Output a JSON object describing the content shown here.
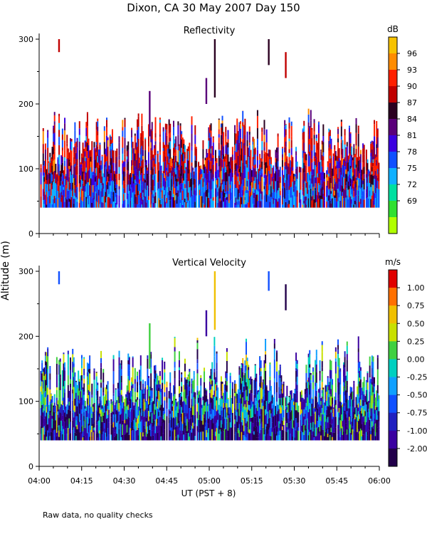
{
  "figure": {
    "title": "Dixon, CA 30 May 2007  Day 150",
    "ylabel": "Altitude (m)",
    "xlabel": "UT  (PST + 8)",
    "footnote": "Raw data, no quality checks"
  },
  "chart_data": [
    {
      "type": "heatmap",
      "title": "Reflectivity",
      "xlabel": "UT  (PST + 8)",
      "ylabel": "Altitude (m)",
      "xlim_hours": [
        4.0,
        6.0
      ],
      "ylim": [
        0,
        300
      ],
      "x_ticks": [
        "04:00",
        "04:15",
        "04:30",
        "04:45",
        "05:00",
        "05:15",
        "05:30",
        "05:45",
        "06:00"
      ],
      "y_ticks": [
        0,
        100,
        200,
        300
      ],
      "data_range_m": [
        40,
        300
      ],
      "colorbar": {
        "unit": "dB",
        "labels": [
          "96",
          "93",
          "90",
          "87",
          "84",
          "81",
          "78",
          "75",
          "72",
          "69"
        ],
        "colors_top_to_bottom": [
          "#f7c200",
          "#ff8c00",
          "#ff2000",
          "#c00000",
          "#2a0020",
          "#5a007a",
          "#3a00e0",
          "#1050ff",
          "#10b0ff",
          "#00e0a0",
          "#30e030",
          "#b0ff00"
        ]
      },
      "palette_weights": {
        "#c00000": 0.12,
        "#ff2000": 0.1,
        "#5a007a": 0.22,
        "#2a0020": 0.12,
        "#3a00e0": 0.16,
        "#1050ff": 0.14,
        "#10b0ff": 0.1,
        "#ff8c00": 0.04
      }
    },
    {
      "type": "heatmap",
      "title": "Vertical Velocity",
      "xlabel": "UT  (PST + 8)",
      "ylabel": "Altitude (m)",
      "xlim_hours": [
        4.0,
        6.0
      ],
      "ylim": [
        0,
        300
      ],
      "x_ticks": [
        "04:00",
        "04:15",
        "04:30",
        "04:45",
        "05:00",
        "05:15",
        "05:30",
        "05:45",
        "06:00"
      ],
      "y_ticks": [
        0,
        100,
        200,
        300
      ],
      "data_range_m": [
        40,
        300
      ],
      "colorbar": {
        "unit": "m/s",
        "labels": [
          "1.00",
          "0.75",
          "0.50",
          "0.25",
          "0.00",
          "-0.25",
          "-0.50",
          "-0.75",
          "-1.00",
          "-2.00"
        ],
        "colors_top_to_bottom": [
          "#e00000",
          "#ff7000",
          "#f0c000",
          "#c8e000",
          "#40d040",
          "#00d0c0",
          "#10a0ff",
          "#1050ff",
          "#2020c0",
          "#3a00a0",
          "#22004a"
        ]
      },
      "palette_weights": {
        "#22004a": 0.18,
        "#3a00a0": 0.14,
        "#2020c0": 0.12,
        "#1050ff": 0.14,
        "#10a0ff": 0.12,
        "#00d0c0": 0.1,
        "#40d040": 0.1,
        "#c8e000": 0.06,
        "#f0c000": 0.04
      }
    }
  ],
  "isolated_echoes": [
    {
      "panel": 0,
      "time_h": 4.117,
      "alt": [
        280,
        300
      ],
      "color": "#c00000"
    },
    {
      "panel": 0,
      "time_h": 4.983,
      "alt": [
        200,
        240
      ],
      "color": "#5a007a"
    },
    {
      "panel": 0,
      "time_h": 5.033,
      "alt": [
        210,
        300
      ],
      "color": "#2a0020"
    },
    {
      "panel": 0,
      "time_h": 5.35,
      "alt": [
        260,
        300
      ],
      "color": "#2a0020"
    },
    {
      "panel": 0,
      "time_h": 5.45,
      "alt": [
        240,
        280
      ],
      "color": "#c00000"
    },
    {
      "panel": 0,
      "time_h": 4.65,
      "alt": [
        150,
        220
      ],
      "color": "#5a007a"
    },
    {
      "panel": 1,
      "time_h": 4.117,
      "alt": [
        280,
        300
      ],
      "color": "#1050ff"
    },
    {
      "panel": 1,
      "time_h": 4.983,
      "alt": [
        200,
        240
      ],
      "color": "#3a00a0"
    },
    {
      "panel": 1,
      "time_h": 5.033,
      "alt": [
        210,
        300
      ],
      "color": "#f0c000"
    },
    {
      "panel": 1,
      "time_h": 5.35,
      "alt": [
        270,
        300
      ],
      "color": "#1050ff"
    },
    {
      "panel": 1,
      "time_h": 5.45,
      "alt": [
        240,
        280
      ],
      "color": "#22004a"
    },
    {
      "panel": 1,
      "time_h": 4.65,
      "alt": [
        150,
        220
      ],
      "color": "#40d040"
    }
  ]
}
